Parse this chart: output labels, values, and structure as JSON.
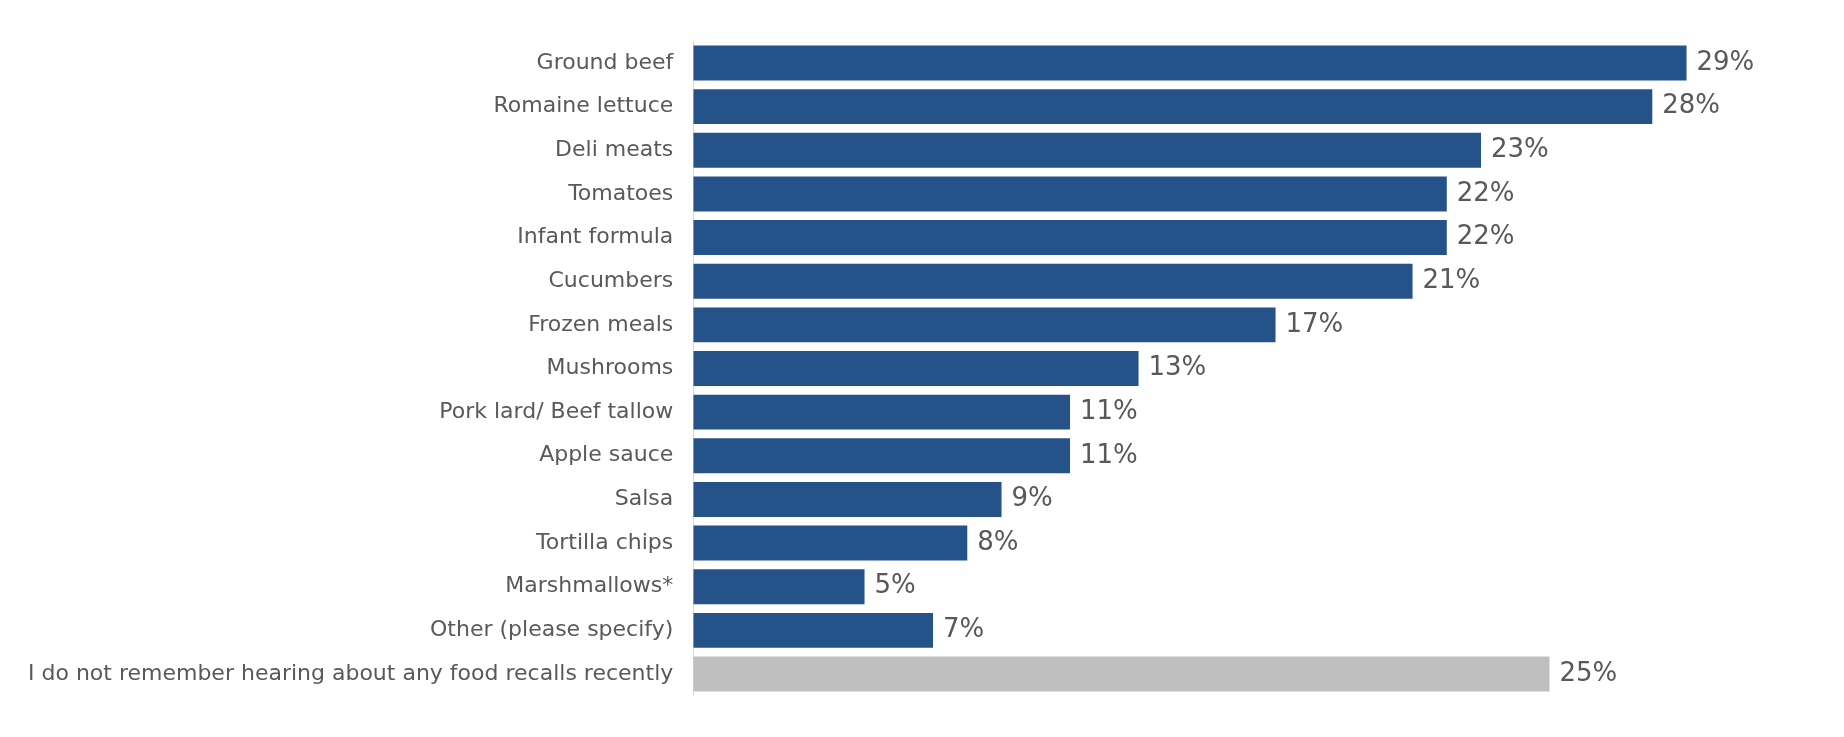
{
  "chart_data": {
    "type": "bar",
    "orientation": "horizontal",
    "categories": [
      "Ground beef",
      "Romaine lettuce",
      "Deli meats",
      "Tomatoes",
      "Infant formula",
      "Cucumbers",
      "Frozen meals",
      "Mushrooms",
      "Pork lard/ Beef tallow",
      "Apple sauce",
      "Salsa",
      "Tortilla chips",
      "Marshmallows*",
      "Other (please specify)",
      "I do not remember hearing about any food recalls recently"
    ],
    "values": [
      29,
      28,
      23,
      22,
      22,
      21,
      17,
      13,
      11,
      11,
      9,
      8,
      5,
      7,
      25
    ],
    "value_labels": [
      "29%",
      "28%",
      "23%",
      "22%",
      "22%",
      "21%",
      "17%",
      "13%",
      "11%",
      "11%",
      "9%",
      "8%",
      "5%",
      "7%",
      "25%"
    ],
    "colors": [
      "#245289",
      "#245289",
      "#245289",
      "#245289",
      "#245289",
      "#245289",
      "#245289",
      "#245289",
      "#245289",
      "#245289",
      "#245289",
      "#245289",
      "#245289",
      "#245289",
      "#bfbfbf"
    ],
    "legend": false
  }
}
